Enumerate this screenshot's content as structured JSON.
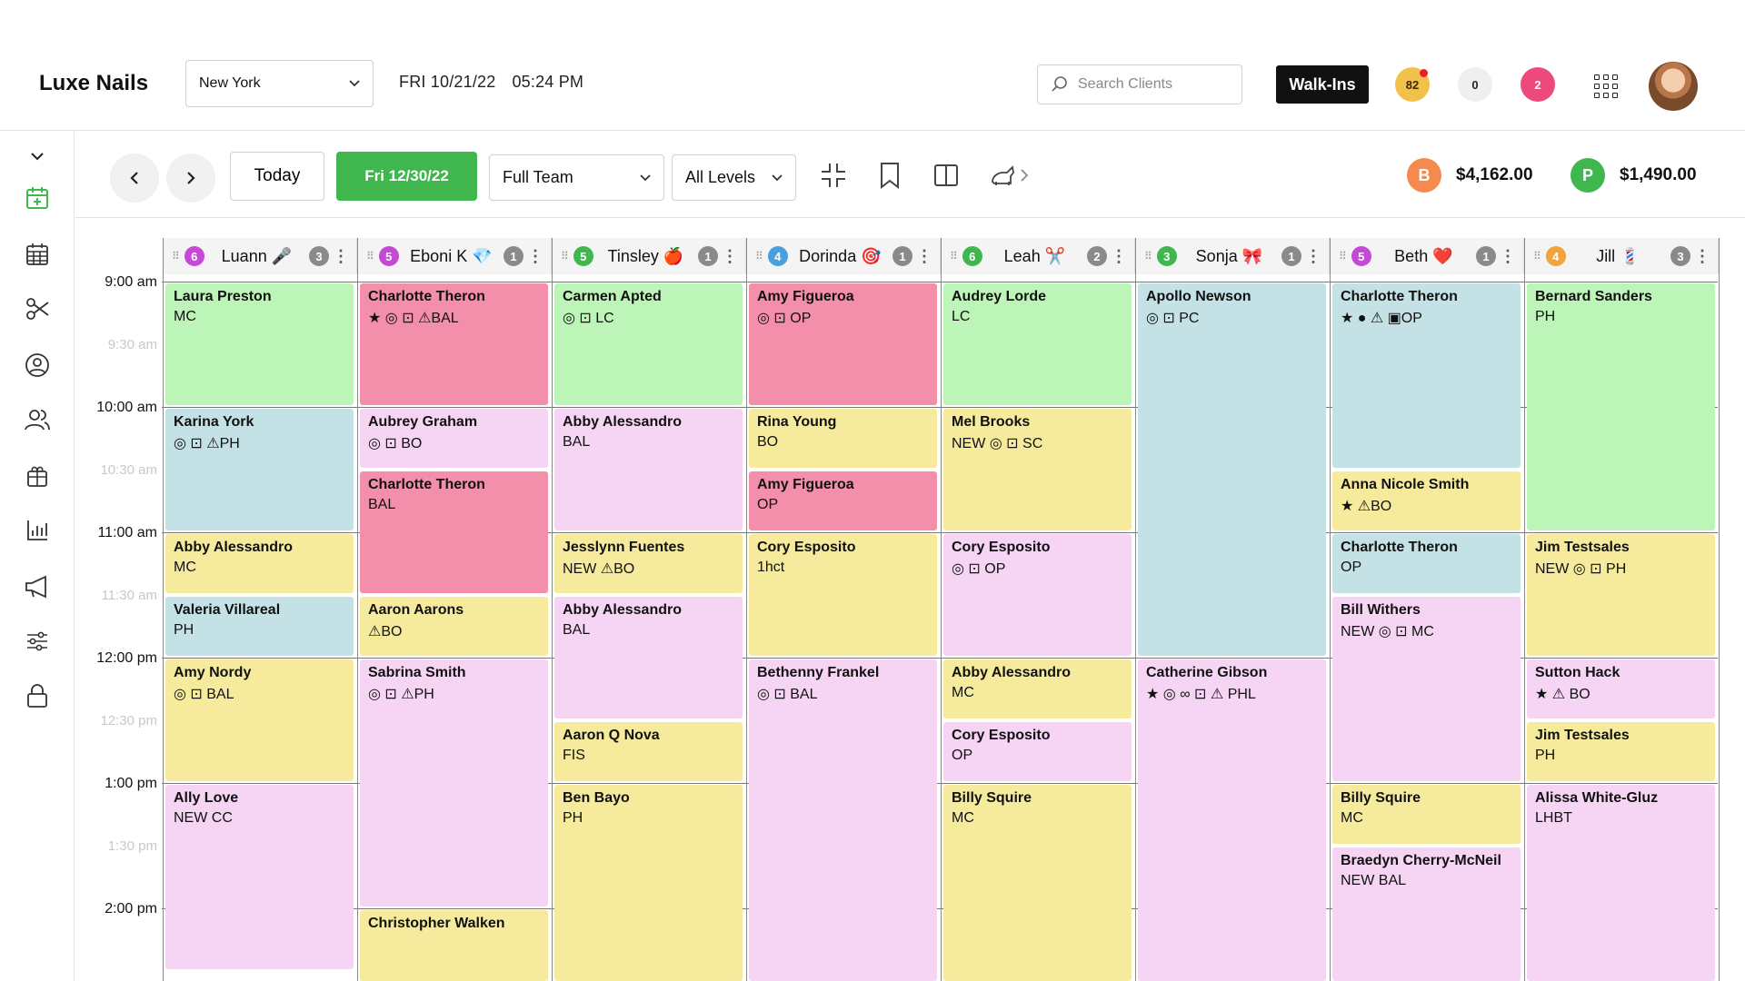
{
  "header": {
    "brand": "Luxe Nails",
    "location": "New York",
    "day": "FRI 10/21/22",
    "time": "05:24 PM",
    "search_placeholder": "Search Clients",
    "walkins": "Walk-Ins",
    "badge_yellow": "82",
    "badge_grey": "0",
    "badge_pink": "2"
  },
  "toolbar": {
    "today": "Today",
    "date": "Fri 12/30/22",
    "team": "Full Team",
    "levels": "All Levels",
    "total_b_letter": "B",
    "total_b": "$4,162.00",
    "total_p_letter": "P",
    "total_p": "$1,490.00",
    "colors": {
      "b": "#f58a4e",
      "p": "#3fb64e"
    }
  },
  "times": [
    {
      "label": "9:00 am",
      "half": false
    },
    {
      "label": "9:30 am",
      "half": true
    },
    {
      "label": "10:00 am",
      "half": false
    },
    {
      "label": "10:30 am",
      "half": true
    },
    {
      "label": "11:00 am",
      "half": false
    },
    {
      "label": "11:30 am",
      "half": true
    },
    {
      "label": "12:00 pm",
      "half": false
    },
    {
      "label": "12:30 pm",
      "half": true
    },
    {
      "label": "1:00 pm",
      "half": false
    },
    {
      "label": "1:30 pm",
      "half": true
    },
    {
      "label": "2:00 pm",
      "half": false
    }
  ],
  "staff": [
    {
      "name": "Luann",
      "emoji": "🎤",
      "count": "6",
      "count_color": "#c548d6",
      "right": "3",
      "appts": [
        {
          "client": "Laura Preston",
          "service": "MC",
          "color": "g",
          "start": 0,
          "dur": 2
        },
        {
          "client": "Karina York",
          "service": "◎ ⊡ ⚠PH",
          "color": "b",
          "start": 2,
          "dur": 2
        },
        {
          "client": "Abby Alessandro",
          "service": "MC",
          "color": "y",
          "start": 4,
          "dur": 1
        },
        {
          "client": "Valeria Villareal",
          "service": "PH",
          "color": "b",
          "start": 5,
          "dur": 1
        },
        {
          "client": "Amy Nordy",
          "service": "◎ ⊡ BAL",
          "color": "y",
          "start": 6,
          "dur": 2
        },
        {
          "client": "Ally Love",
          "service": "NEW CC",
          "color": "l",
          "start": 8,
          "dur": 3
        }
      ]
    },
    {
      "name": "Eboni K",
      "emoji": "💎",
      "count": "5",
      "count_color": "#c548d6",
      "right": "1",
      "appts": [
        {
          "client": "Charlotte Theron",
          "service": "★ ◎ ⊡ ⚠BAL",
          "color": "p",
          "start": 0,
          "dur": 2
        },
        {
          "client": "Aubrey Graham",
          "service": "◎ ⊡ BO",
          "color": "l",
          "start": 2,
          "dur": 1
        },
        {
          "client": "Charlotte Theron",
          "service": "BAL",
          "color": "p",
          "start": 3,
          "dur": 2
        },
        {
          "client": "Aaron Aarons",
          "service": "⚠BO",
          "color": "y",
          "start": 5,
          "dur": 1
        },
        {
          "client": "Sabrina Smith",
          "service": "◎ ⊡ ⚠PH",
          "color": "l",
          "start": 6,
          "dur": 4
        },
        {
          "client": "Christopher Walken",
          "service": "",
          "color": "y",
          "start": 10,
          "dur": 1.2
        }
      ]
    },
    {
      "name": "Tinsley",
      "emoji": "🍎",
      "count": "5",
      "count_color": "#3fb64e",
      "right": "1",
      "appts": [
        {
          "client": "Carmen Apted",
          "service": "◎ ⊡ LC",
          "color": "g",
          "start": 0,
          "dur": 2
        },
        {
          "client": "Abby Alessandro",
          "service": "BAL",
          "color": "l",
          "start": 2,
          "dur": 2
        },
        {
          "client": "Jesslynn Fuentes",
          "service": "NEW ⚠BO",
          "color": "y",
          "start": 4,
          "dur": 1
        },
        {
          "client": "Abby Alessandro",
          "service": "BAL",
          "color": "l",
          "start": 5,
          "dur": 2
        },
        {
          "client": "Aaron Q Nova",
          "service": "FIS",
          "color": "y",
          "start": 7,
          "dur": 1
        },
        {
          "client": "Ben Bayo",
          "service": "PH",
          "color": "y",
          "start": 8,
          "dur": 3.2
        }
      ]
    },
    {
      "name": "Dorinda",
      "emoji": "🎯",
      "count": "4",
      "count_color": "#4a9fe0",
      "right": "1",
      "appts": [
        {
          "client": "Amy Figueroa",
          "service": "◎ ⊡ OP",
          "color": "p",
          "start": 0,
          "dur": 2
        },
        {
          "client": "Rina Young",
          "service": "BO",
          "color": "y",
          "start": 2,
          "dur": 1
        },
        {
          "client": "Amy Figueroa",
          "service": "OP",
          "color": "p",
          "start": 3,
          "dur": 1
        },
        {
          "client": "Cory Esposito",
          "service": "1hct",
          "color": "y",
          "start": 4,
          "dur": 2
        },
        {
          "client": "Bethenny Frankel",
          "service": "◎ ⊡ BAL",
          "color": "l",
          "start": 6,
          "dur": 5.2
        }
      ]
    },
    {
      "name": "Leah",
      "emoji": "✂️",
      "count": "6",
      "count_color": "#3fb64e",
      "right": "2",
      "appts": [
        {
          "client": "Audrey Lorde",
          "service": "LC",
          "color": "g",
          "start": 0,
          "dur": 2
        },
        {
          "client": "Mel Brooks",
          "service": "NEW ◎ ⊡ SC",
          "color": "y",
          "start": 2,
          "dur": 2
        },
        {
          "client": "Cory Esposito",
          "service": "◎ ⊡ OP",
          "color": "l",
          "start": 4,
          "dur": 2
        },
        {
          "client": "Abby Alessandro",
          "service": "MC",
          "color": "y",
          "start": 6,
          "dur": 1
        },
        {
          "client": "Cory Esposito",
          "service": "OP",
          "color": "l",
          "start": 7,
          "dur": 1
        },
        {
          "client": "Billy Squire",
          "service": "MC",
          "color": "y",
          "start": 8,
          "dur": 3.2
        }
      ]
    },
    {
      "name": "Sonja",
      "emoji": "🎀",
      "count": "3",
      "count_color": "#3fb64e",
      "right": "1",
      "appts": [
        {
          "client": "Apollo Newson",
          "service": "◎ ⊡ PC",
          "color": "b",
          "start": 0,
          "dur": 6
        },
        {
          "client": "Catherine Gibson",
          "service": "★ ◎ ∞ ⊡ ⚠ PHL",
          "color": "l",
          "start": 6,
          "dur": 5.2
        }
      ]
    },
    {
      "name": "Beth",
      "emoji": "❤️",
      "count": "5",
      "count_color": "#c548d6",
      "right": "1",
      "appts": [
        {
          "client": "Charlotte Theron",
          "service": "★ ● ⚠ ▣OP",
          "color": "b",
          "start": 0,
          "dur": 3
        },
        {
          "client": "Anna Nicole Smith",
          "service": "★ ⚠BO",
          "color": "y",
          "start": 3,
          "dur": 1
        },
        {
          "client": "Charlotte Theron",
          "service": "OP",
          "color": "b",
          "start": 4,
          "dur": 1
        },
        {
          "client": "Bill Withers",
          "service": "NEW ◎ ⊡ MC",
          "color": "l",
          "start": 5,
          "dur": 3
        },
        {
          "client": "Billy Squire",
          "service": "MC",
          "color": "y",
          "start": 8,
          "dur": 1
        },
        {
          "client": "Braedyn Cherry-McNeil",
          "service": "NEW BAL",
          "color": "l",
          "start": 9,
          "dur": 2.2
        }
      ]
    },
    {
      "name": "Jill",
      "emoji": "💈",
      "count": "4",
      "count_color": "#f0a43b",
      "right": "3",
      "appts": [
        {
          "client": "Bernard Sanders",
          "service": "PH",
          "color": "g",
          "start": 0,
          "dur": 4
        },
        {
          "client": "Jim Testsales",
          "service": "NEW ◎ ⊡ PH",
          "color": "y",
          "start": 4,
          "dur": 2
        },
        {
          "client": "Sutton Hack",
          "service": "★ ⚠ BO",
          "color": "l",
          "start": 6,
          "dur": 1
        },
        {
          "client": "Jim Testsales",
          "service": "PH",
          "color": "y",
          "start": 7,
          "dur": 1
        },
        {
          "client": "Alissa White-Gluz",
          "service": "LHBT",
          "color": "l",
          "start": 8,
          "dur": 3.2
        }
      ]
    }
  ]
}
